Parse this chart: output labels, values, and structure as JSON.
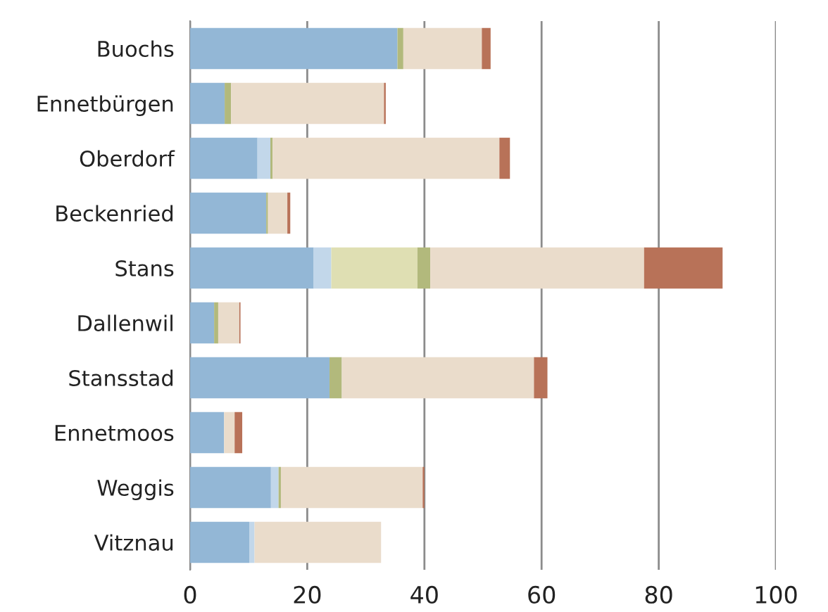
{
  "chart_data": {
    "type": "bar",
    "orientation": "horizontal",
    "stacked": true,
    "categories": [
      "Buochs",
      "Ennetbürgen",
      "Oberdorf",
      "Beckenried",
      "Stans",
      "Dallenwil",
      "Stansstad",
      "Ennetmoos",
      "Weggis",
      "Vitznau"
    ],
    "series": [
      {
        "color": "#93b7d6",
        "values": [
          35.4,
          5.9,
          11.5,
          13.0,
          21.1,
          4.1,
          23.8,
          5.8,
          13.8,
          10.1
        ]
      },
      {
        "color": "#c2d7ea",
        "values": [
          0,
          null,
          2.2,
          0,
          3.0,
          0,
          0,
          null,
          1.3,
          0.9
        ]
      },
      {
        "color": "#dfdfb3",
        "values": [
          0,
          0,
          0,
          0,
          14.7,
          0,
          0,
          0,
          null,
          0
        ]
      },
      {
        "color": "#b2b97c",
        "values": [
          1.0,
          1.1,
          0.4,
          0.3,
          2.2,
          0.7,
          2.1,
          0,
          0.4,
          0
        ]
      },
      {
        "color": "#eadccb",
        "values": [
          13.4,
          26.1,
          38.7,
          3.3,
          36.5,
          3.6,
          32.8,
          1.8,
          24.2,
          21.6
        ]
      },
      {
        "color": "#b87258",
        "values": [
          1.5,
          0.3,
          1.8,
          0.5,
          13.4,
          0.2,
          2.3,
          1.3,
          0.3,
          0
        ]
      }
    ],
    "xlim": [
      0,
      100
    ],
    "xticks": [
      0,
      20,
      40,
      60,
      80,
      100
    ],
    "grid": "x"
  }
}
